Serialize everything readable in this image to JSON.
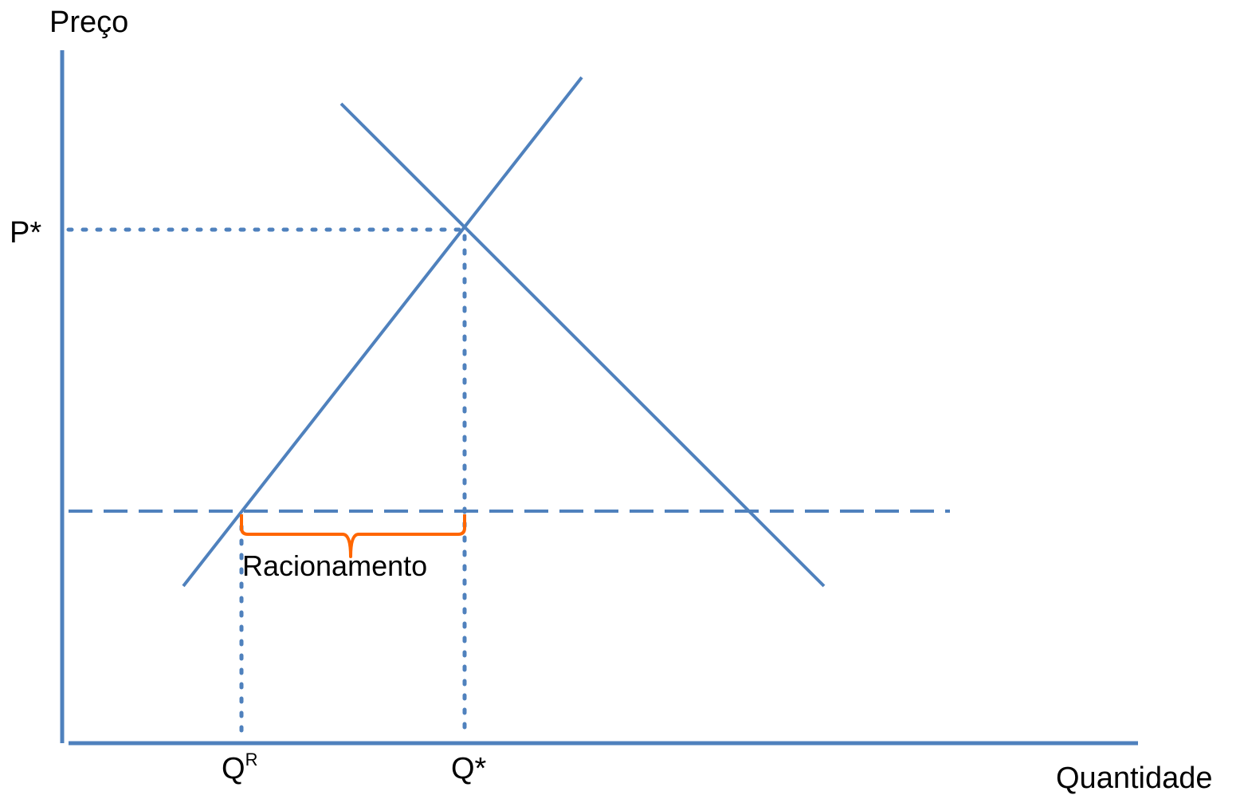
{
  "diagram": {
    "axes": {
      "y_label": "Preço",
      "x_label": "Quantidade"
    },
    "ticks": {
      "p_star": "P*",
      "q_r_base": "Q",
      "q_r_sup": "R",
      "q_star": "Q*"
    },
    "annotation": {
      "rationing_label": "Racionamento"
    },
    "colors": {
      "curve": "#4f81bd",
      "brace": "#ff6600",
      "text": "#000000"
    }
  }
}
